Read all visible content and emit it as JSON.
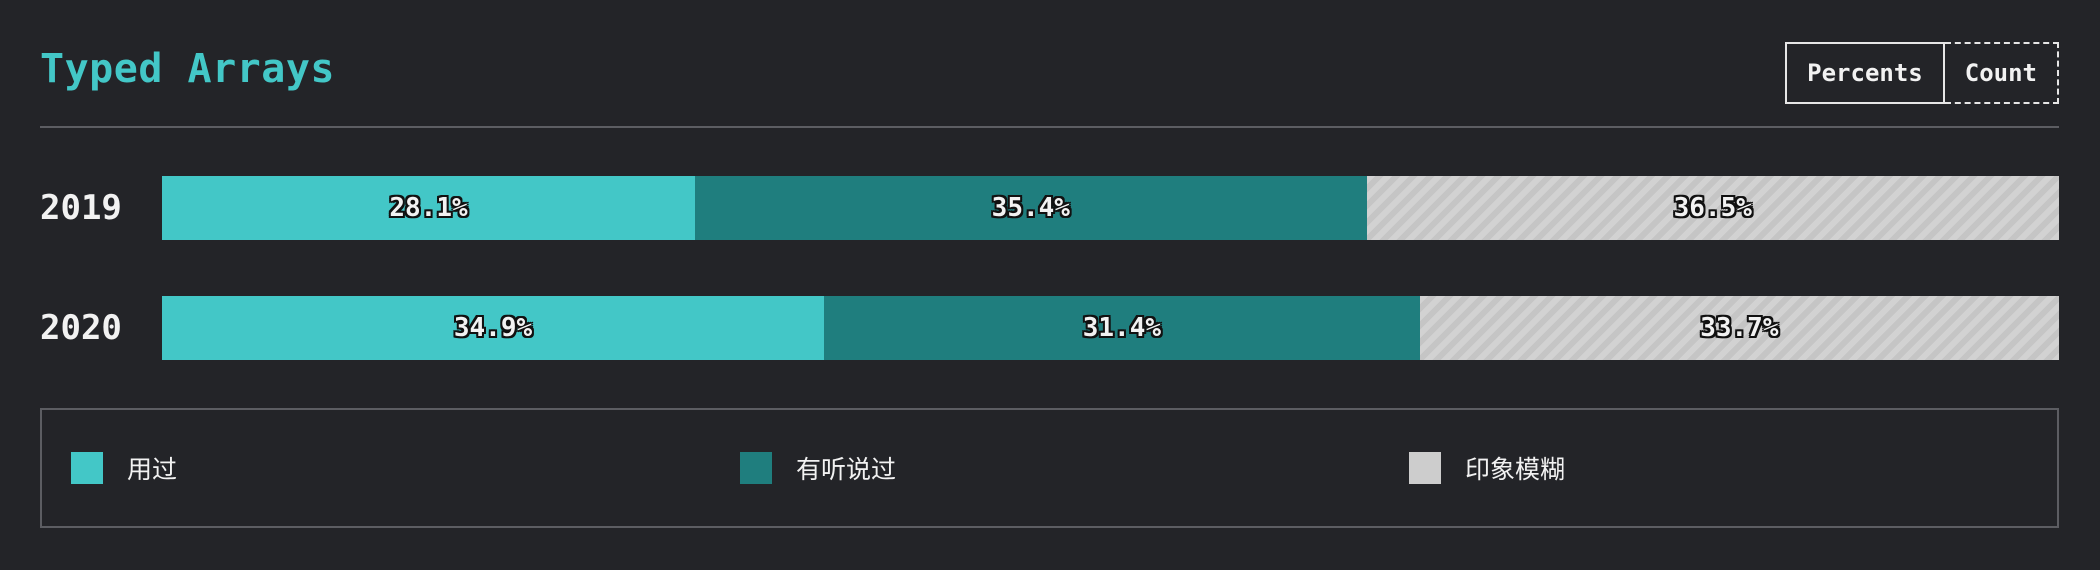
{
  "header": {
    "title": "Typed Arrays",
    "toggle": {
      "percents_label": "Percents",
      "count_label": "Count"
    }
  },
  "colors": {
    "used": "#43c7c7",
    "heard": "#1f7e7e",
    "vague": "#cdcdcd",
    "background": "#232428"
  },
  "chart_data": {
    "type": "bar",
    "stacked": true,
    "orientation": "horizontal",
    "title": "Typed Arrays",
    "categories": [
      "2019",
      "2020"
    ],
    "series": [
      {
        "name": "用过",
        "values": [
          28.1,
          34.9
        ],
        "labels": [
          "28.1%",
          "34.9%"
        ]
      },
      {
        "name": "有听说过",
        "values": [
          35.4,
          31.4
        ],
        "labels": [
          "35.4%",
          "31.4%"
        ]
      },
      {
        "name": "印象模糊",
        "values": [
          36.5,
          33.7
        ],
        "labels": [
          "36.5%",
          "33.7%"
        ]
      }
    ],
    "xlim": [
      0,
      100
    ],
    "legend": "bottom"
  }
}
